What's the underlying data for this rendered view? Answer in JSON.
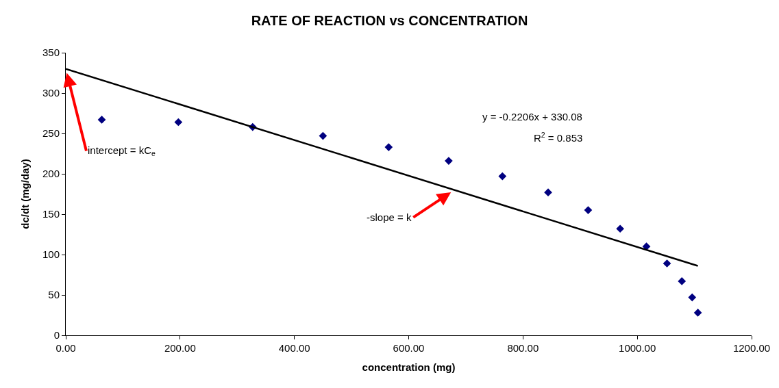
{
  "chart_data": {
    "type": "scatter",
    "title": "RATE OF REACTION vs CONCENTRATION",
    "xlabel": "concentration (mg)",
    "ylabel": "dc/dt (mg/day)",
    "series": [
      {
        "color": "#000080",
        "marker": "diamond",
        "x": [
          63,
          197,
          327,
          450,
          565,
          670,
          764,
          844,
          914,
          970,
          1016,
          1052,
          1078,
          1096,
          1106
        ],
        "values": [
          267,
          264,
          258,
          247,
          233,
          216,
          197,
          177,
          155,
          132,
          110,
          89,
          67,
          47,
          28
        ]
      },
      {
        "type": "line",
        "color": "#000000",
        "line_style": "solid",
        "x": [
          0,
          1106
        ],
        "values": [
          330,
          86
        ]
      }
    ],
    "annotations": [
      "y = -0.2206x + 330.08",
      "R$^{2}$ = 0.853",
      {
        "text": "intercept = kC$_{e}$",
        "x": 0,
        "y": 330
      },
      {
        "text": "-slope = k",
        "x": 680,
        "y": 180
      }
    ],
    "xlim": [
      0,
      1200
    ],
    "ylim": [
      0,
      350
    ],
    "xticks": [
      {
        "value": 0,
        "label": "0.00"
      },
      {
        "value": 200,
        "label": "200.00"
      },
      {
        "value": 400,
        "label": "400.00"
      },
      {
        "value": 600,
        "label": "600.00"
      },
      {
        "value": 800,
        "label": "800.00"
      },
      {
        "value": 1000,
        "label": "1000.00"
      },
      {
        "value": 1200,
        "label": "1200.00"
      }
    ],
    "yticks": [
      0,
      50,
      100,
      150,
      200,
      250,
      300,
      350
    ]
  }
}
